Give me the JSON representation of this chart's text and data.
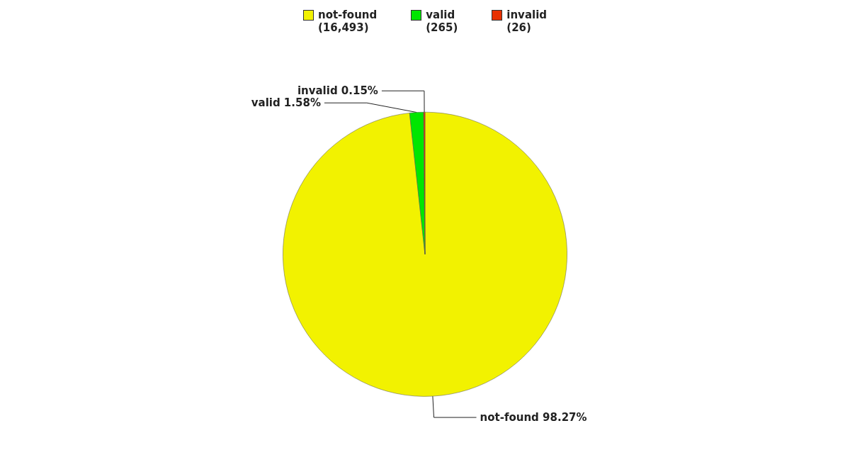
{
  "chart_data": {
    "type": "pie",
    "categories": [
      "not-found",
      "valid",
      "invalid"
    ],
    "values": [
      98.27,
      1.58,
      0.15
    ],
    "colors": [
      "#f2f200",
      "#00e600",
      "#e83000"
    ],
    "value_labels": [
      "98.27%",
      "1.58%",
      "0.15%"
    ],
    "annotations": [
      "(16,493)",
      "(265)",
      "(26)"
    ],
    "legend": "top"
  }
}
